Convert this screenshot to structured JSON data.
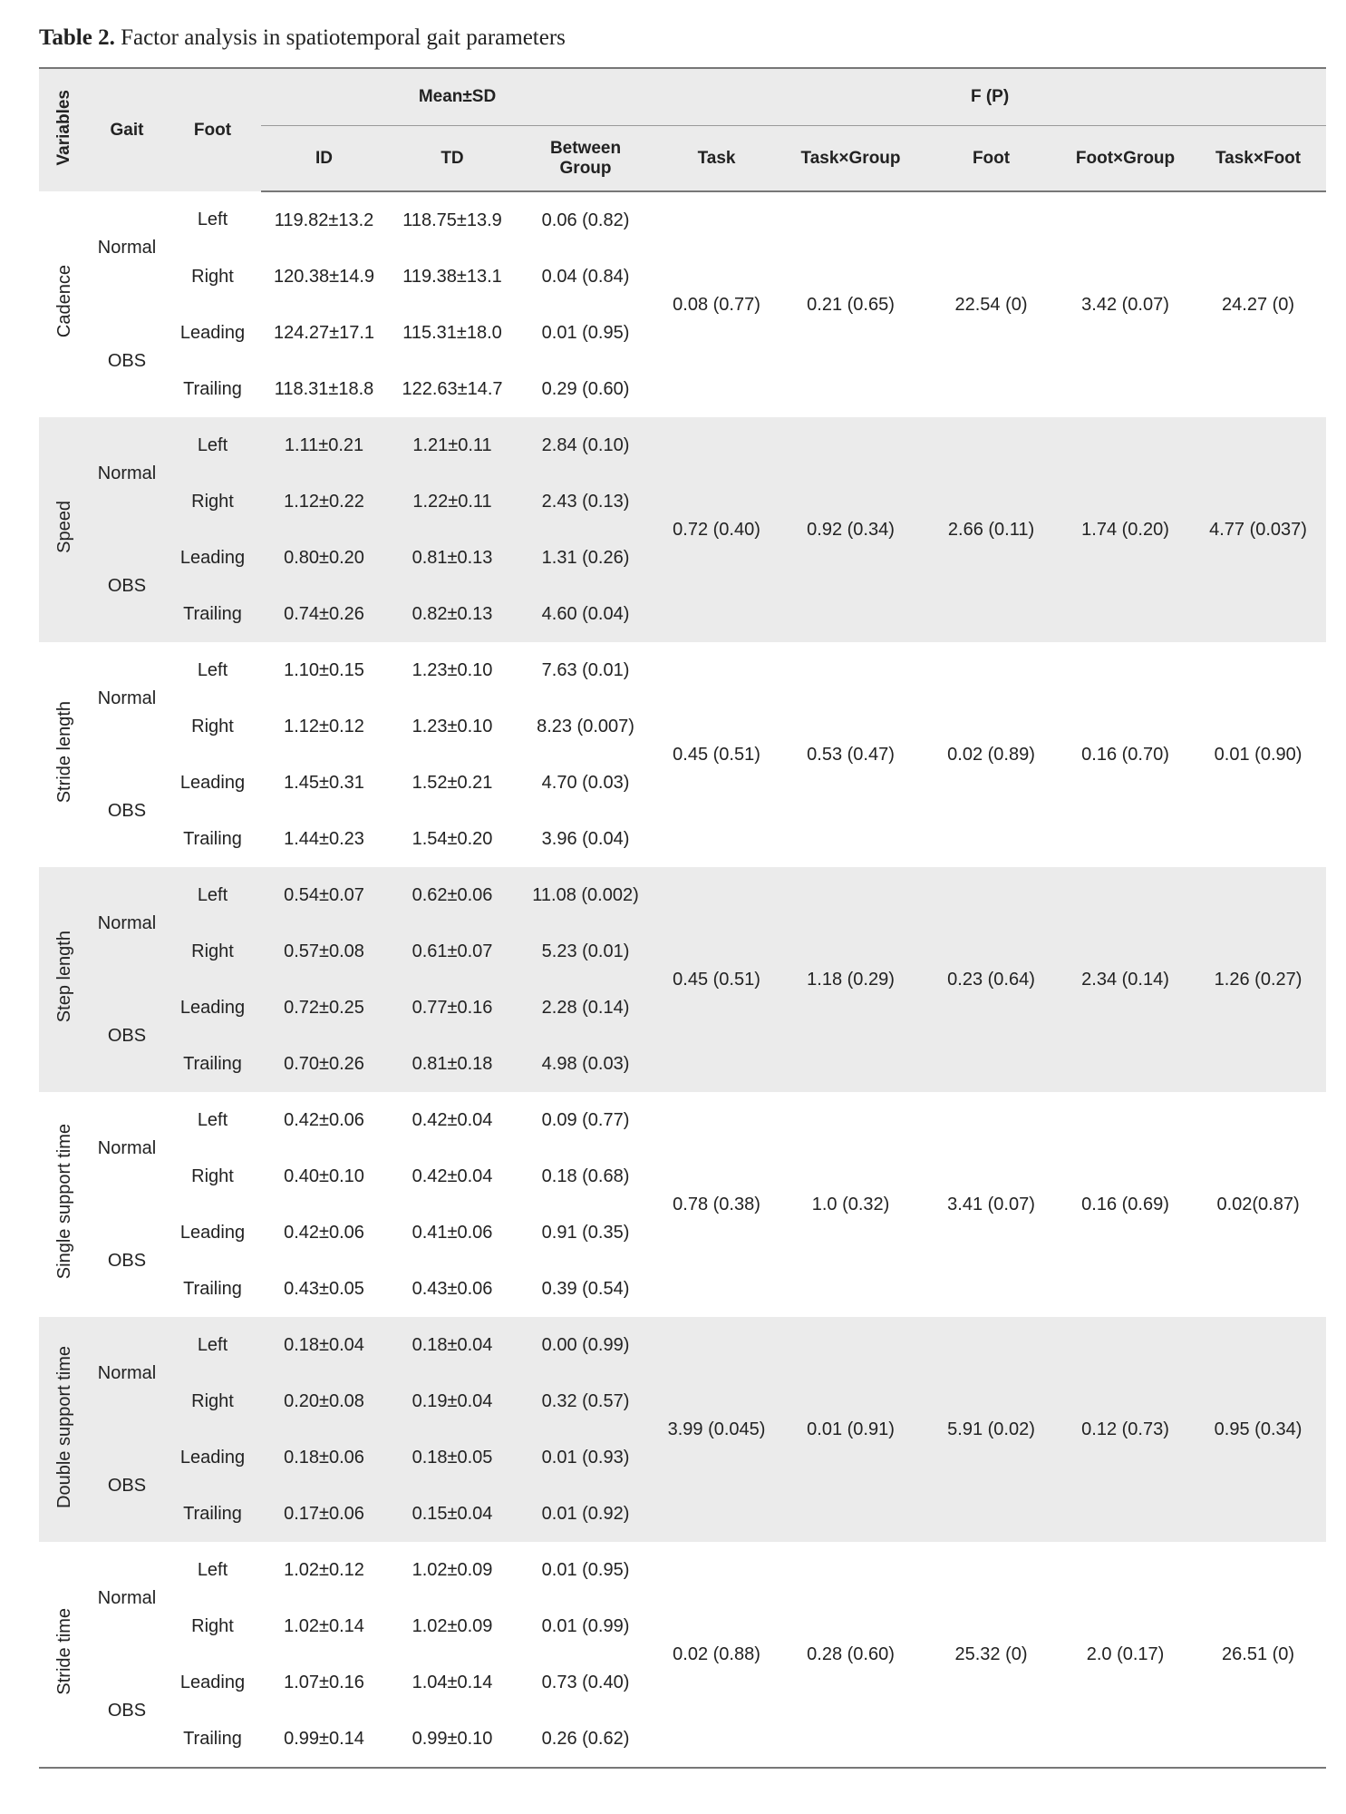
{
  "title_label": "Table 2.",
  "title_text": "Factor analysis in spatiotemporal gait parameters",
  "header": {
    "variables": "Variables",
    "gait": "Gait",
    "foot": "Foot",
    "mean_sd": "Mean±SD",
    "fp": "F (P)",
    "sub": [
      "ID",
      "TD",
      "Between Group",
      "Task",
      "Task×Group",
      "Foot",
      "Foot×Group",
      "Task×Foot"
    ]
  },
  "groups": [
    {
      "variable": "Cadence",
      "gait": [
        "Normal",
        "OBS"
      ],
      "rows": [
        [
          "Left",
          "119.82±13.2",
          "118.75±13.9",
          "0.06 (0.82)"
        ],
        [
          "Right",
          "120.38±14.9",
          "119.38±13.1",
          "0.04 (0.84)"
        ],
        [
          "Leading",
          "124.27±17.1",
          "115.31±18.0",
          "0.01 (0.95)"
        ],
        [
          "Trailing",
          "118.31±18.8",
          "122.63±14.7",
          "0.29 (0.60)"
        ]
      ],
      "stats": [
        "0.08 (0.77)",
        "0.21 (0.65)",
        "22.54 (0)",
        "3.42 (0.07)",
        "24.27 (0)"
      ]
    },
    {
      "variable": "Speed",
      "gait": [
        "Normal",
        "OBS"
      ],
      "rows": [
        [
          "Left",
          "1.11±0.21",
          "1.21±0.11",
          "2.84 (0.10)"
        ],
        [
          "Right",
          "1.12±0.22",
          "1.22±0.11",
          "2.43 (0.13)"
        ],
        [
          "Leading",
          "0.80±0.20",
          "0.81±0.13",
          "1.31 (0.26)"
        ],
        [
          "Trailing",
          "0.74±0.26",
          "0.82±0.13",
          "4.60 (0.04)"
        ]
      ],
      "stats": [
        "0.72 (0.40)",
        "0.92 (0.34)",
        "2.66 (0.11)",
        "1.74 (0.20)",
        "4.77 (0.037)"
      ]
    },
    {
      "variable": "Stride length",
      "gait": [
        "Normal",
        "OBS"
      ],
      "rows": [
        [
          "Left",
          "1.10±0.15",
          "1.23±0.10",
          "7.63 (0.01)"
        ],
        [
          "Right",
          "1.12±0.12",
          "1.23±0.10",
          "8.23 (0.007)"
        ],
        [
          "Leading",
          "1.45±0.31",
          "1.52±0.21",
          "4.70 (0.03)"
        ],
        [
          "Trailing",
          "1.44±0.23",
          "1.54±0.20",
          "3.96 (0.04)"
        ]
      ],
      "stats": [
        "0.45 (0.51)",
        "0.53 (0.47)",
        "0.02 (0.89)",
        "0.16 (0.70)",
        "0.01 (0.90)"
      ]
    },
    {
      "variable": "Step length",
      "gait": [
        "Normal",
        "OBS"
      ],
      "rows": [
        [
          "Left",
          "0.54±0.07",
          "0.62±0.06",
          "11.08 (0.002)"
        ],
        [
          "Right",
          "0.57±0.08",
          "0.61±0.07",
          "5.23 (0.01)"
        ],
        [
          "Leading",
          "0.72±0.25",
          "0.77±0.16",
          "2.28 (0.14)"
        ],
        [
          "Trailing",
          "0.70±0.26",
          "0.81±0.18",
          "4.98 (0.03)"
        ]
      ],
      "stats": [
        "0.45 (0.51)",
        "1.18 (0.29)",
        "0.23 (0.64)",
        "2.34 (0.14)",
        "1.26 (0.27)"
      ]
    },
    {
      "variable": "Single support time",
      "gait": [
        "Normal",
        "OBS"
      ],
      "rows": [
        [
          "Left",
          "0.42±0.06",
          "0.42±0.04",
          "0.09 (0.77)"
        ],
        [
          "Right",
          "0.40±0.10",
          "0.42±0.04",
          "0.18 (0.68)"
        ],
        [
          "Leading",
          "0.42±0.06",
          "0.41±0.06",
          "0.91 (0.35)"
        ],
        [
          "Trailing",
          "0.43±0.05",
          "0.43±0.06",
          "0.39 (0.54)"
        ]
      ],
      "stats": [
        "0.78 (0.38)",
        "1.0 (0.32)",
        "3.41 (0.07)",
        "0.16 (0.69)",
        "0.02(0.87)"
      ]
    },
    {
      "variable": "Double support time",
      "gait": [
        "Normal",
        "OBS"
      ],
      "rows": [
        [
          "Left",
          "0.18±0.04",
          "0.18±0.04",
          "0.00 (0.99)"
        ],
        [
          "Right",
          "0.20±0.08",
          "0.19±0.04",
          "0.32 (0.57)"
        ],
        [
          "Leading",
          "0.18±0.06",
          "0.18±0.05",
          "0.01 (0.93)"
        ],
        [
          "Trailing",
          "0.17±0.06",
          "0.15±0.04",
          "0.01 (0.92)"
        ]
      ],
      "stats": [
        "3.99 (0.045)",
        "0.01 (0.91)",
        "5.91 (0.02)",
        "0.12 (0.73)",
        "0.95 (0.34)"
      ]
    },
    {
      "variable": "Stride time",
      "gait": [
        "Normal",
        "OBS"
      ],
      "rows": [
        [
          "Left",
          "1.02±0.12",
          "1.02±0.09",
          "0.01 (0.95)"
        ],
        [
          "Right",
          "1.02±0.14",
          "1.02±0.09",
          "0.01 (0.99)"
        ],
        [
          "Leading",
          "1.07±0.16",
          "1.04±0.14",
          "0.73 (0.40)"
        ],
        [
          "Trailing",
          "0.99±0.14",
          "0.99±0.10",
          "0.26 (0.62)"
        ]
      ],
      "stats": [
        "0.02 (0.88)",
        "0.28 (0.60)",
        "25.32 (0)",
        "2.0 (0.17)",
        "26.51 (0)"
      ]
    }
  ]
}
